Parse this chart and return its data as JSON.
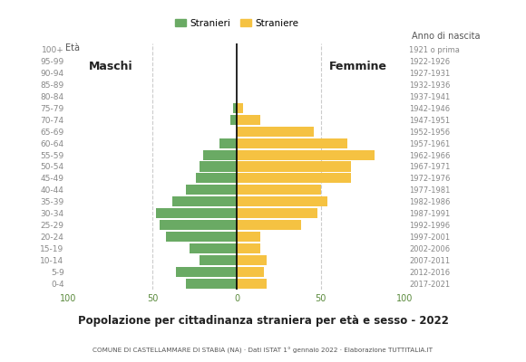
{
  "age_groups": [
    "100+",
    "95-99",
    "90-94",
    "85-89",
    "80-84",
    "75-79",
    "70-74",
    "65-69",
    "60-64",
    "55-59",
    "50-54",
    "45-49",
    "40-44",
    "35-39",
    "30-34",
    "25-29",
    "20-24",
    "15-19",
    "10-14",
    "5-9",
    "0-4"
  ],
  "birth_years": [
    "1921 o prima",
    "1922-1926",
    "1927-1931",
    "1932-1936",
    "1937-1941",
    "1942-1946",
    "1947-1951",
    "1952-1956",
    "1957-1961",
    "1962-1966",
    "1967-1971",
    "1972-1976",
    "1977-1981",
    "1982-1986",
    "1987-1991",
    "1992-1996",
    "1997-2001",
    "2002-2006",
    "2007-2011",
    "2012-2016",
    "2017-2021"
  ],
  "males": [
    0,
    0,
    0,
    0,
    0,
    2,
    4,
    0,
    10,
    20,
    22,
    24,
    30,
    38,
    48,
    46,
    42,
    28,
    22,
    36,
    30
  ],
  "females": [
    0,
    0,
    0,
    0,
    0,
    4,
    14,
    46,
    66,
    82,
    68,
    68,
    50,
    54,
    48,
    38,
    14,
    14,
    18,
    16,
    18
  ],
  "male_color": "#6aaa64",
  "female_color": "#f5c242",
  "title": "Popolazione per cittadinanza straniera per età e sesso - 2022",
  "subtitle": "COMUNE DI CASTELLAMMARE DI STABIA (NA) · Dati ISTAT 1° gennaio 2022 · Elaborazione TUTTITALIA.IT",
  "legend_male": "Stranieri",
  "legend_female": "Straniere",
  "xlim": 100,
  "eta_label": "Età",
  "anno_label": "Anno di nascita",
  "maschi_label": "Maschi",
  "femmine_label": "Femmine",
  "background_color": "#ffffff",
  "grid_color": "#cccccc",
  "bar_height": 0.85
}
